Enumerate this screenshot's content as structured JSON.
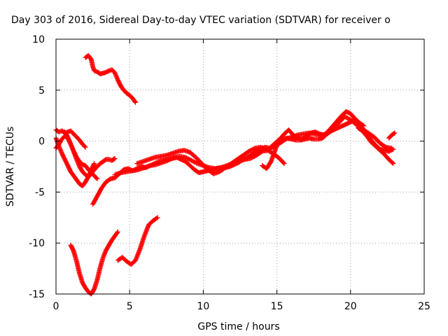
{
  "chart_data": {
    "type": "scatter",
    "title": "Day 303 of 2016, Sidereal Day-to-day VTEC variation (SDTVAR) for receiver o",
    "xlabel": "GPS time / hours",
    "ylabel": "SDTVAR / TECUs",
    "xlim": [
      0,
      25
    ],
    "ylim": [
      -15,
      10
    ],
    "x_ticks": [
      0,
      5,
      10,
      15,
      20,
      25
    ],
    "y_ticks": [
      -15,
      -10,
      -5,
      0,
      5,
      10
    ],
    "grid": true,
    "marker": "plus",
    "color": "#ff0000",
    "series": [
      {
        "x": [
          2.0,
          2.2,
          2.4,
          2.5,
          2.6,
          2.8,
          3.0,
          3.3,
          3.6,
          3.8,
          4.0,
          4.2,
          4.4,
          4.6,
          4.8,
          5.0,
          5.2,
          5.4
        ],
        "y": [
          8.2,
          8.4,
          8.0,
          7.3,
          6.9,
          6.8,
          6.6,
          6.7,
          6.9,
          7.0,
          6.7,
          6.0,
          5.4,
          5.0,
          4.7,
          4.5,
          4.2,
          3.8
        ]
      },
      {
        "x": [
          0.0,
          0.2,
          0.4,
          0.6,
          0.8,
          1.0,
          1.2,
          1.4,
          1.6,
          1.8,
          2.0
        ],
        "y": [
          1.1,
          0.9,
          1.0,
          0.8,
          0.9,
          1.0,
          0.7,
          0.4,
          0.1,
          -0.3,
          -0.6
        ]
      },
      {
        "x": [
          0.0,
          0.2,
          0.4,
          0.6,
          0.8,
          1.0,
          1.2,
          1.4,
          1.6,
          1.8,
          2.0,
          2.2,
          2.4,
          2.6,
          2.8,
          3.0,
          3.2,
          3.4,
          3.6,
          3.8,
          4.0
        ],
        "y": [
          -0.7,
          -0.3,
          0.2,
          0.5,
          0.3,
          -0.3,
          -1.0,
          -1.8,
          -2.5,
          -3.0,
          -3.3,
          -3.5,
          -3.2,
          -2.8,
          -2.5,
          -2.2,
          -2.0,
          -1.8,
          -1.8,
          -1.9,
          -1.7
        ]
      },
      {
        "x": [
          0.0,
          0.2,
          0.4,
          0.6,
          0.8,
          1.0,
          1.2,
          1.4,
          1.6,
          1.8,
          2.0,
          2.2,
          2.4,
          2.6
        ],
        "y": [
          0.3,
          -0.5,
          -1.2,
          -1.8,
          -2.4,
          -3.0,
          -3.4,
          -3.8,
          -4.2,
          -4.4,
          -4.0,
          -3.5,
          -2.8,
          -2.2
        ]
      },
      {
        "x": [
          0.6,
          0.8,
          1.0,
          1.2,
          1.4,
          1.6,
          1.8,
          2.0,
          2.2,
          2.4,
          2.6,
          2.8
        ],
        "y": [
          0.9,
          0.4,
          -0.3,
          -1.0,
          -1.6,
          -2.0,
          -2.3,
          -2.4,
          -2.8,
          -3.1,
          -3.4,
          -3.7
        ]
      },
      {
        "x": [
          2.5,
          2.8,
          3.1,
          3.4,
          3.7,
          4.0,
          4.3,
          4.6,
          4.9,
          5.2,
          5.5,
          5.8,
          6.1,
          6.4,
          6.7,
          7.0,
          7.3,
          7.6,
          7.9,
          8.2,
          8.5,
          8.8,
          9.1,
          9.4,
          9.7,
          10.0,
          10.3,
          10.6,
          10.9,
          11.2,
          11.5,
          11.8,
          12.1,
          12.4,
          12.7,
          13.0,
          13.3,
          13.6,
          13.9,
          14.2,
          14.5,
          14.8,
          15.1,
          15.4,
          15.7,
          16.0,
          16.3,
          16.6,
          16.9,
          17.2,
          17.5,
          17.8,
          18.1,
          18.4,
          18.7,
          19.0,
          19.3,
          19.6,
          19.9,
          20.2,
          20.5,
          20.8,
          21.1,
          21.4,
          21.7,
          22.0,
          22.3,
          22.6,
          22.9
        ],
        "y": [
          -6.2,
          -5.4,
          -4.6,
          -4.0,
          -3.7,
          -3.6,
          -3.2,
          -2.8,
          -2.7,
          -2.9,
          -2.7,
          -2.5,
          -2.6,
          -2.4,
          -2.2,
          -2.0,
          -1.9,
          -1.8,
          -1.7,
          -1.6,
          -1.8,
          -2.0,
          -2.4,
          -2.8,
          -3.1,
          -3.0,
          -2.9,
          -2.8,
          -2.7,
          -2.6,
          -2.6,
          -2.5,
          -2.3,
          -2.1,
          -1.8,
          -1.6,
          -1.3,
          -1.0,
          -0.8,
          -0.6,
          -0.7,
          -0.3,
          0.1,
          0.2,
          0.3,
          0.2,
          0.1,
          0.1,
          0.2,
          0.3,
          0.2,
          0.2,
          0.3,
          0.7,
          1.0,
          1.2,
          1.4,
          1.6,
          1.8,
          2.0,
          1.7,
          1.3,
          0.7,
          0.1,
          -0.4,
          -0.8,
          -0.9,
          -1.0,
          -0.8
        ]
      },
      {
        "x": [
          4.0,
          4.4,
          4.8,
          5.2,
          5.6,
          6.0,
          6.4,
          6.8,
          7.2,
          7.6,
          8.0,
          8.4,
          8.8,
          9.2,
          9.6,
          10.0,
          10.4,
          10.8,
          11.2,
          11.6,
          12.0,
          12.4,
          12.8,
          13.2,
          13.6,
          14.0,
          14.4,
          14.8,
          15.2,
          15.6,
          16.0,
          16.4,
          16.8,
          17.2,
          17.6,
          18.0,
          18.4,
          18.8,
          19.2,
          19.6,
          20.0,
          20.4,
          20.8,
          21.2,
          21.6,
          22.0,
          22.4,
          22.8
        ],
        "y": [
          -3.3,
          -3.1,
          -3.0,
          -2.9,
          -2.8,
          -2.6,
          -2.4,
          -2.3,
          -2.1,
          -1.9,
          -1.6,
          -1.5,
          -1.6,
          -1.9,
          -2.2,
          -2.4,
          -2.6,
          -2.7,
          -2.6,
          -2.4,
          -2.2,
          -2.0,
          -1.8,
          -1.7,
          -1.4,
          -1.0,
          -0.9,
          -0.5,
          -0.2,
          0.2,
          0.4,
          0.6,
          0.7,
          0.8,
          0.7,
          0.6,
          0.7,
          1.2,
          1.8,
          2.4,
          2.1,
          1.6,
          1.2,
          0.8,
          0.4,
          -0.2,
          -0.6,
          -0.7
        ]
      },
      {
        "x": [
          5.5,
          5.9,
          6.3,
          6.7,
          7.1,
          7.5,
          7.9,
          8.3,
          8.7,
          9.1,
          9.5,
          9.9,
          10.3,
          10.7,
          11.1,
          11.5,
          11.9,
          12.3,
          12.7,
          13.1,
          13.5,
          13.9,
          14.3,
          14.7,
          15.1,
          15.5
        ],
        "y": [
          -2.2,
          -2.0,
          -1.8,
          -1.6,
          -1.5,
          -1.4,
          -1.2,
          -1.0,
          -0.9,
          -1.1,
          -1.6,
          -2.2,
          -2.8,
          -3.2,
          -3.0,
          -2.6,
          -2.2,
          -1.8,
          -1.4,
          -1.0,
          -0.7,
          -0.6,
          -0.8,
          -1.2,
          -1.6,
          -2.2
        ]
      },
      {
        "x": [
          14.0,
          14.3,
          14.6,
          14.9,
          15.2,
          15.5,
          15.8,
          16.1,
          16.4,
          16.7,
          17.0,
          17.3,
          17.6,
          17.9,
          18.2,
          18.5,
          18.8,
          19.1,
          19.4,
          19.7,
          20.0,
          20.3,
          20.6,
          20.9
        ],
        "y": [
          -2.4,
          -2.7,
          -2.0,
          -0.8,
          0.2,
          0.7,
          1.1,
          0.6,
          0.3,
          0.2,
          0.5,
          0.8,
          0.9,
          0.7,
          0.6,
          1.0,
          1.5,
          2.0,
          2.5,
          2.9,
          2.7,
          2.2,
          1.8,
          1.5
        ]
      },
      {
        "x": [
          20.5,
          20.8,
          21.1,
          21.4,
          21.7,
          22.0,
          22.3,
          22.6,
          22.9
        ],
        "y": [
          1.3,
          1.0,
          0.5,
          -0.1,
          -0.5,
          -0.9,
          -1.3,
          -1.8,
          -2.2
        ]
      },
      {
        "x": [
          22.6,
          22.8,
          23.0
        ],
        "y": [
          0.3,
          0.6,
          0.8
        ]
      },
      {
        "x": [
          1.0,
          1.2,
          1.4,
          1.6,
          1.8,
          2.0,
          2.2,
          2.4,
          2.6,
          2.8,
          3.0,
          3.2,
          3.4,
          3.6,
          3.8,
          4.0,
          4.2
        ],
        "y": [
          -10.2,
          -10.8,
          -11.8,
          -13.0,
          -13.9,
          -14.4,
          -14.8,
          -15.0,
          -14.5,
          -13.6,
          -12.4,
          -11.4,
          -10.7,
          -10.2,
          -9.7,
          -9.3,
          -8.9
        ]
      },
      {
        "x": [
          4.2,
          4.5,
          4.8,
          5.1,
          5.4,
          5.7,
          6.0,
          6.3,
          6.6,
          6.9
        ],
        "y": [
          -11.7,
          -11.4,
          -11.8,
          -12.1,
          -11.7,
          -10.6,
          -9.3,
          -8.2,
          -7.8,
          -7.5
        ]
      }
    ]
  }
}
